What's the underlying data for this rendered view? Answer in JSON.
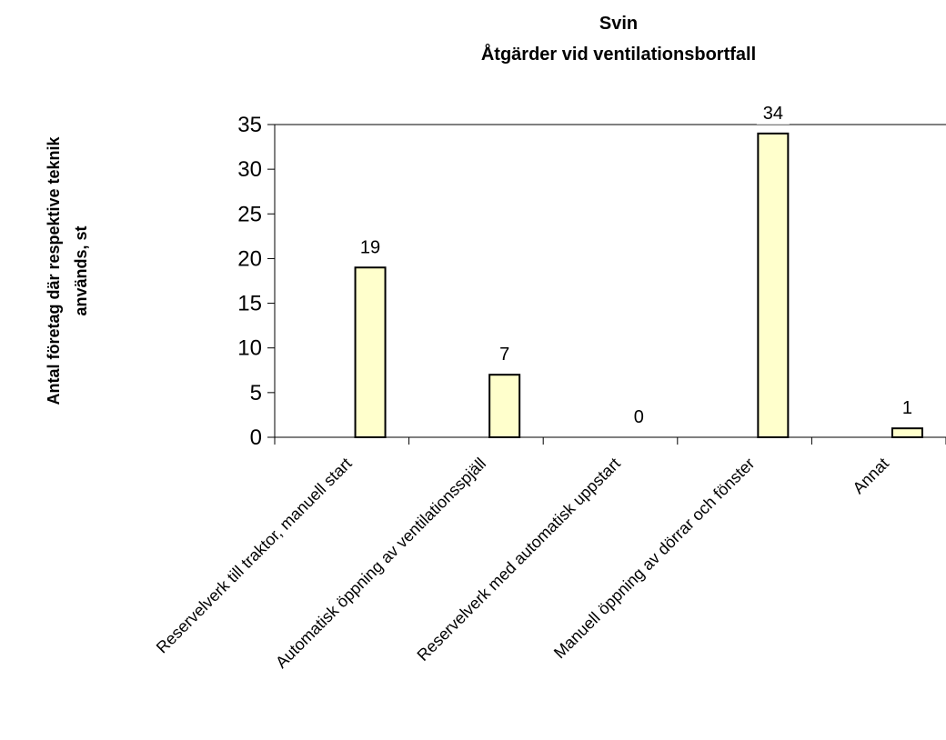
{
  "chart_data": {
    "type": "bar",
    "title": "Svin",
    "subtitle": "Åtgärder vid ventilationsbortfall",
    "ylabel_line1": "Antal företag där respektive teknik",
    "ylabel_line2": "används, st",
    "xlabel": "",
    "categories": [
      "Reservelverk till traktor, manuell start",
      "Automatisk öppning av ventilationsspjäll",
      "Reservelverk med automatisk uppstart",
      "Manuell öppning av dörrar och fönster",
      "Annat"
    ],
    "values": [
      19,
      7,
      0,
      34,
      1
    ],
    "data_labels": [
      "19",
      "7",
      "0",
      "34",
      "1"
    ],
    "ylim": [
      0,
      35
    ],
    "yticks": [
      "0",
      "5",
      "10",
      "15",
      "20",
      "25",
      "30",
      "35"
    ],
    "grid": false,
    "bar_color": "#ffffcc",
    "bar_edge_color": "#000000"
  }
}
